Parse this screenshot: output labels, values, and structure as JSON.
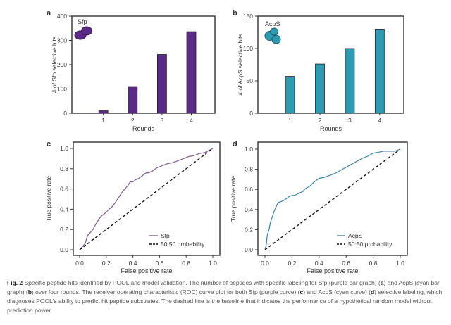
{
  "figure": {
    "caption": {
      "fig_label": "Fig. 2",
      "segments": [
        {
          "text": " Specific peptide hits identified by POOL and model validation. The number of peptides with specific labeling for Sfp (purple bar graph) ",
          "bold": false
        },
        {
          "text": "(",
          "bold": false
        },
        {
          "text": "a",
          "bold": true
        },
        {
          "text": ") and AcpS (cyan bar graph) (",
          "bold": false
        },
        {
          "text": "b",
          "bold": true
        },
        {
          "text": ") over four rounds. The receiver operating characteristic (ROC) curve plot for both Sfp (purple curve) (",
          "bold": false
        },
        {
          "text": "c",
          "bold": true
        },
        {
          "text": ") and AcpS (cyan curve) (",
          "bold": false
        },
        {
          "text": "d",
          "bold": true
        },
        {
          "text": ") selective labeling, which diagnoses POOL's ability to predict hit peptide substrates. The dashed line is the baseline that indicates the performance of a hypothetical random model without prediction power",
          "bold": false
        }
      ]
    },
    "colors": {
      "sfp": "#5b2a86",
      "acps": "#2e9bb3",
      "sfp_curve": "#7a5d8f",
      "acps_curve": "#3f82a3",
      "axis": "#333333",
      "icon_sfp_label": "#8a6ab0",
      "icon_acps_label": "#5fb7cc"
    }
  },
  "chart_data": [
    {
      "panel": "a",
      "type": "bar",
      "title": "",
      "inset_label": "Sfp",
      "categories": [
        "1",
        "2",
        "3",
        "4"
      ],
      "values": [
        10,
        110,
        242,
        336
      ],
      "xlabel": "Rounds",
      "ylabel": "# of Sfp selective hits",
      "ylim": [
        0,
        400
      ],
      "yticks": [
        0,
        100,
        200,
        300,
        400
      ],
      "color": "#5b2a86",
      "grid": false
    },
    {
      "panel": "b",
      "type": "bar",
      "title": "",
      "inset_label": "AcpS",
      "categories": [
        "1",
        "2",
        "3",
        "4"
      ],
      "values": [
        57,
        76,
        100,
        130
      ],
      "xlabel": "Rounds",
      "ylabel": "# of AcpS selective hits",
      "ylim": [
        0,
        150
      ],
      "yticks": [
        0,
        50,
        100,
        150
      ],
      "color": "#2e9bb3",
      "grid": false
    },
    {
      "panel": "c",
      "type": "line",
      "xlabel": "False positive rate",
      "ylabel": "True positive rate",
      "xlim": [
        0,
        1
      ],
      "ylim": [
        0,
        1
      ],
      "xticks": [
        "0.0",
        "0.2",
        "0.4",
        "0.6",
        "0.8",
        "1.0"
      ],
      "yticks": [
        "0.0",
        "0.2",
        "0.4",
        "0.6",
        "0.8",
        "1.0"
      ],
      "legend": "bottom-right",
      "series": [
        {
          "name": "Sfp",
          "style": "solid",
          "color": "#7a5d8f",
          "x": [
            0.0,
            0.02,
            0.04,
            0.05,
            0.06,
            0.08,
            0.1,
            0.12,
            0.14,
            0.16,
            0.18,
            0.2,
            0.22,
            0.24,
            0.26,
            0.28,
            0.3,
            0.32,
            0.34,
            0.36,
            0.38,
            0.4,
            0.42,
            0.44,
            0.46,
            0.48,
            0.5,
            0.52,
            0.55,
            0.58,
            0.62,
            0.66,
            0.7,
            0.74,
            0.78,
            0.82,
            0.86,
            0.9,
            0.94,
            0.97,
            1.0
          ],
          "y": [
            0.0,
            0.03,
            0.06,
            0.1,
            0.14,
            0.17,
            0.2,
            0.25,
            0.29,
            0.33,
            0.35,
            0.37,
            0.4,
            0.42,
            0.45,
            0.49,
            0.53,
            0.57,
            0.6,
            0.63,
            0.67,
            0.67,
            0.69,
            0.7,
            0.72,
            0.74,
            0.76,
            0.76,
            0.78,
            0.81,
            0.83,
            0.85,
            0.86,
            0.88,
            0.9,
            0.92,
            0.93,
            0.95,
            0.96,
            0.98,
            1.0
          ]
        },
        {
          "name": "50:50 probability",
          "style": "dashed",
          "color": "#111111",
          "x": [
            0,
            1
          ],
          "y": [
            0,
            1
          ]
        }
      ]
    },
    {
      "panel": "d",
      "type": "line",
      "xlabel": "False positive rate",
      "ylabel": "True positive rate",
      "xlim": [
        0,
        1
      ],
      "ylim": [
        0,
        1
      ],
      "xticks": [
        "0.0",
        "0.2",
        "0.4",
        "0.6",
        "0.8",
        "1.0"
      ],
      "yticks": [
        "0.0",
        "0.2",
        "0.4",
        "0.6",
        "0.8",
        "1.0"
      ],
      "legend": "bottom-right",
      "series": [
        {
          "name": "AcpS",
          "style": "solid",
          "color": "#3f82a3",
          "x": [
            0.0,
            0.01,
            0.015,
            0.02,
            0.03,
            0.04,
            0.05,
            0.06,
            0.07,
            0.08,
            0.09,
            0.1,
            0.12,
            0.14,
            0.16,
            0.18,
            0.2,
            0.22,
            0.25,
            0.28,
            0.3,
            0.33,
            0.36,
            0.4,
            0.44,
            0.48,
            0.52,
            0.56,
            0.6,
            0.64,
            0.68,
            0.72,
            0.76,
            0.8,
            0.84,
            0.88,
            0.92,
            0.96,
            1.0
          ],
          "y": [
            0.0,
            0.05,
            0.12,
            0.16,
            0.2,
            0.27,
            0.31,
            0.35,
            0.39,
            0.42,
            0.45,
            0.47,
            0.48,
            0.49,
            0.51,
            0.53,
            0.54,
            0.54,
            0.56,
            0.58,
            0.61,
            0.63,
            0.67,
            0.71,
            0.72,
            0.74,
            0.76,
            0.79,
            0.82,
            0.85,
            0.88,
            0.91,
            0.93,
            0.96,
            0.97,
            0.98,
            0.98,
            0.98,
            1.0
          ]
        },
        {
          "name": "50:50 probability",
          "style": "dashed",
          "color": "#111111",
          "x": [
            0,
            1
          ],
          "y": [
            0,
            1
          ]
        }
      ]
    }
  ]
}
